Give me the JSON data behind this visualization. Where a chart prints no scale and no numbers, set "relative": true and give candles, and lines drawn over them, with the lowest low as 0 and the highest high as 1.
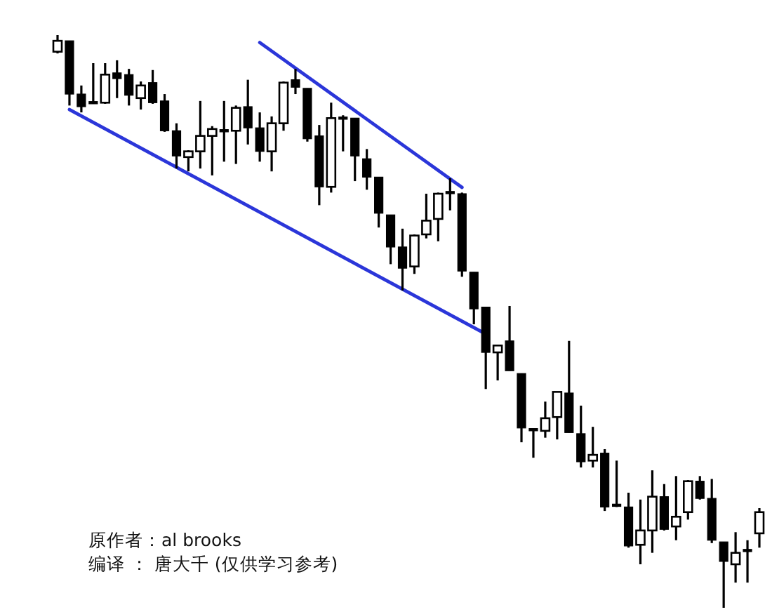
{
  "chart_data": {
    "type": "candlestick",
    "relative": true,
    "categories": [
      null,
      null,
      null,
      null,
      null,
      null,
      null,
      null,
      null,
      null,
      null,
      null,
      null,
      null,
      null,
      null,
      null,
      null,
      null,
      null,
      null,
      null,
      null,
      null,
      null,
      null,
      null,
      null,
      null,
      null,
      null,
      null,
      null,
      null,
      null,
      null,
      null,
      null,
      null,
      null,
      null,
      null,
      null,
      null,
      null,
      null,
      null,
      null,
      null,
      null,
      null,
      null,
      null,
      null,
      null,
      null,
      null,
      null,
      null,
      null
    ],
    "ohlc": [
      [
        0.971,
        1,
        0.968,
        0.99
      ],
      [
        0.99,
        0.99,
        0.877,
        0.897
      ],
      [
        0.897,
        0.912,
        0.865,
        0.875
      ],
      [
        0.882,
        0.951,
        0.88,
        0.882
      ],
      [
        0.882,
        0.951,
        0.88,
        0.931
      ],
      [
        0.934,
        0.956,
        0.89,
        0.924
      ],
      [
        0.931,
        0.941,
        0.877,
        0.895
      ],
      [
        0.89,
        0.919,
        0.87,
        0.912
      ],
      [
        0.917,
        0.939,
        0.88,
        0.882
      ],
      [
        0.885,
        0.897,
        0.831,
        0.833
      ],
      [
        0.833,
        0.846,
        0.767,
        0.789
      ],
      [
        0.787,
        0.799,
        0.762,
        0.797
      ],
      [
        0.797,
        0.885,
        0.767,
        0.824
      ],
      [
        0.824,
        0.841,
        0.755,
        0.836
      ],
      [
        0.833,
        0.885,
        0.779,
        0.833
      ],
      [
        0.833,
        0.877,
        0.775,
        0.873
      ],
      [
        0.875,
        0.922,
        0.809,
        0.838
      ],
      [
        0.838,
        0.865,
        0.779,
        0.797
      ],
      [
        0.797,
        0.858,
        0.762,
        0.846
      ],
      [
        0.846,
        0.919,
        0.833,
        0.917
      ],
      [
        0.922,
        0.941,
        0.897,
        0.909
      ],
      [
        0.907,
        0.907,
        0.814,
        0.819
      ],
      [
        0.824,
        0.843,
        0.703,
        0.735
      ],
      [
        0.735,
        0.882,
        0.725,
        0.855
      ],
      [
        0.855,
        0.86,
        0.797,
        0.855
      ],
      [
        0.855,
        0.855,
        0.745,
        0.789
      ],
      [
        0.784,
        0.801,
        0.73,
        0.752
      ],
      [
        0.752,
        0.752,
        0.664,
        0.689
      ],
      [
        0.686,
        0.686,
        0.6,
        0.63
      ],
      [
        0.63,
        0.662,
        0.554,
        0.593
      ],
      [
        0.596,
        0.652,
        0.583,
        0.65
      ],
      [
        0.652,
        0.723,
        0.645,
        0.676
      ],
      [
        0.679,
        0.725,
        0.64,
        0.723
      ],
      [
        0.725,
        0.75,
        0.694,
        0.725
      ],
      [
        0.723,
        0.725,
        0.578,
        0.588
      ],
      [
        0.586,
        0.586,
        0.495,
        0.522
      ],
      [
        0.525,
        0.525,
        0.382,
        0.446
      ],
      [
        0.446,
        0.458,
        0.397,
        0.458
      ],
      [
        0.466,
        0.527,
        0.414,
        0.414
      ],
      [
        0.409,
        0.409,
        0.289,
        0.314
      ],
      [
        0.311,
        0.311,
        0.262,
        0.311
      ],
      [
        0.309,
        0.36,
        0.297,
        0.331
      ],
      [
        0.333,
        0.377,
        0.294,
        0.377
      ],
      [
        0.375,
        0.466,
        0.306,
        0.306
      ],
      [
        0.304,
        0.353,
        0.245,
        0.255
      ],
      [
        0.257,
        0.316,
        0.245,
        0.267
      ],
      [
        0.27,
        0.277,
        0.169,
        0.176
      ],
      [
        0.179,
        0.257,
        0.176,
        0.179
      ],
      [
        0.176,
        0.201,
        0.105,
        0.108
      ],
      [
        0.11,
        0.189,
        0.076,
        0.135
      ],
      [
        0.135,
        0.24,
        0.096,
        0.194
      ],
      [
        0.194,
        0.216,
        0.135,
        0.137
      ],
      [
        0.142,
        0.23,
        0.118,
        0.159
      ],
      [
        0.167,
        0.223,
        0.154,
        0.221
      ],
      [
        0.221,
        0.23,
        0.189,
        0.191
      ],
      [
        0.191,
        0.225,
        0.113,
        0.118
      ],
      [
        0.115,
        0.115,
        0,
        0.081
      ],
      [
        0.076,
        0.132,
        0.044,
        0.096
      ],
      [
        0.1,
        0.118,
        0.044,
        0.1
      ],
      [
        0.13,
        0.174,
        0.105,
        0.167
      ]
    ],
    "series": [
      {
        "type": "line",
        "color": "#2b36d9",
        "values": [
          null,
          0.87,
          null,
          null,
          null,
          null,
          null,
          null,
          null,
          null,
          null,
          null,
          null,
          null,
          null,
          null,
          null,
          null,
          null,
          null,
          null,
          null,
          null,
          null,
          null,
          null,
          null,
          null,
          null,
          null,
          null,
          null,
          null,
          null,
          null,
          null,
          0.478,
          null,
          null,
          null,
          null,
          null,
          null,
          null,
          null,
          null,
          null,
          null,
          null,
          null,
          null,
          null,
          null,
          null,
          null,
          null,
          null,
          null,
          null,
          null
        ]
      },
      {
        "type": "line",
        "color": "#2b36d9",
        "values": [
          null,
          null,
          null,
          null,
          null,
          null,
          null,
          null,
          null,
          null,
          null,
          null,
          null,
          null,
          null,
          null,
          null,
          0.987,
          null,
          null,
          null,
          null,
          null,
          null,
          null,
          null,
          null,
          null,
          null,
          null,
          null,
          null,
          null,
          null,
          0.734,
          null,
          null,
          null,
          null,
          null,
          null,
          null,
          null,
          null,
          null,
          null,
          null,
          null,
          null,
          null,
          null,
          null,
          null,
          null,
          null,
          null,
          null,
          null,
          null,
          null
        ]
      }
    ],
    "annotations": [
      "原作者：al brooks",
      "编译 ： 唐大千 (仅供学习参考)"
    ]
  }
}
